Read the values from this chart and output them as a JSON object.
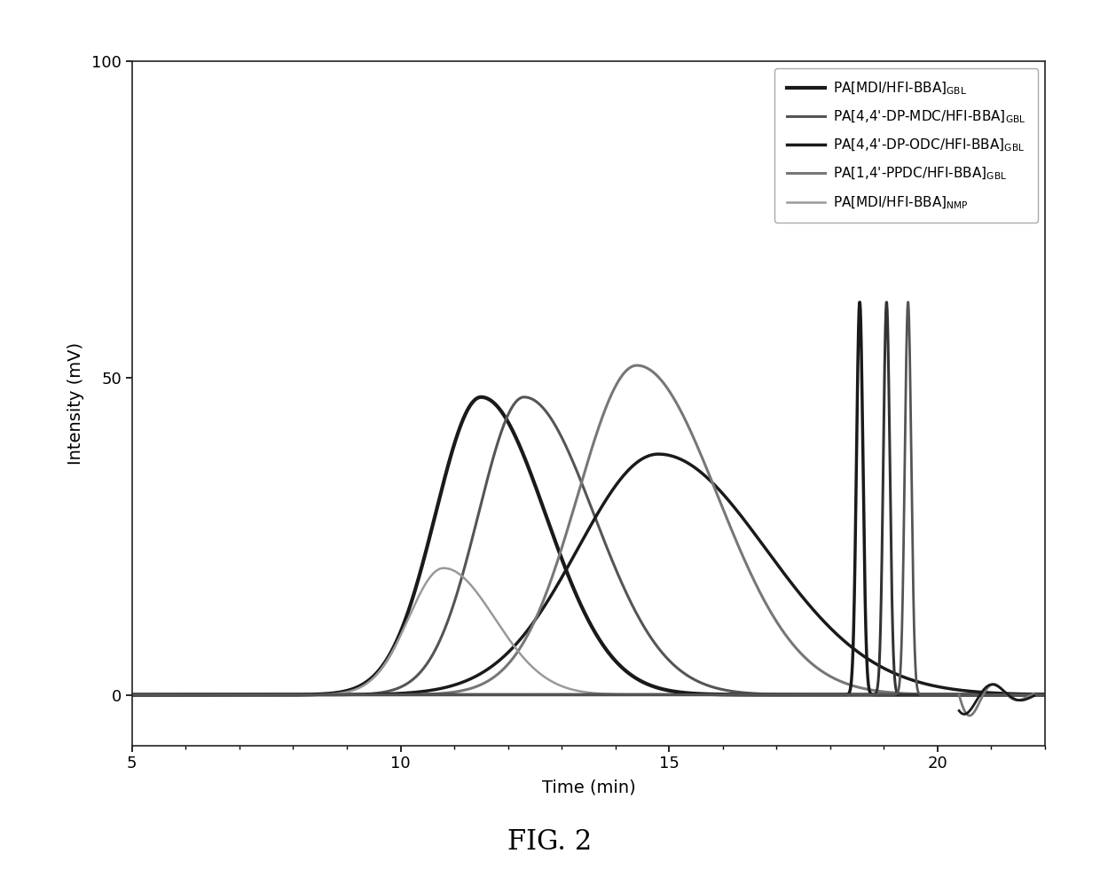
{
  "xlabel": "Time (min)",
  "ylabel": "Intensity (mV)",
  "xlim": [
    5,
    22
  ],
  "ylim": [
    -8,
    100
  ],
  "yticks": [
    0,
    50,
    100
  ],
  "xticks": [
    5,
    10,
    15,
    20
  ],
  "fig_caption": "FIG. 2",
  "background_color": "#ffffff",
  "plot_bg_color": "#ffffff",
  "legend_entries": [
    {
      "label_main": "PA[MDI/HFI-BBA]",
      "label_sub": "GBL",
      "color": "#1a1a1a",
      "lw": 3.0
    },
    {
      "label_main": "PA[4,4'-DP-MDC/HFI-BBA]",
      "label_sub": "GBL",
      "color": "#555555",
      "lw": 2.2
    },
    {
      "label_main": "PA[4,4'-DP-ODC/HFI-BBA]",
      "label_sub": "GBL",
      "color": "#1a1a1a",
      "lw": 2.5
    },
    {
      "label_main": "PA[1,4'-PPDC/HFI-BBA]",
      "label_sub": "GBL",
      "color": "#777777",
      "lw": 2.2
    },
    {
      "label_main": "PA[MDI/HFI-BBA]",
      "label_sub": "NMP",
      "color": "#999999",
      "lw": 1.8
    }
  ],
  "curves": [
    {
      "mu": 11.5,
      "amp": 47,
      "sl": 0.85,
      "sr": 1.2,
      "color": "#1a1a1a",
      "lw": 3.0
    },
    {
      "mu": 12.3,
      "amp": 47,
      "sl": 0.85,
      "sr": 1.3,
      "color": "#555555",
      "lw": 2.2
    },
    {
      "mu": 14.8,
      "amp": 38,
      "sl": 1.5,
      "sr": 2.0,
      "color": "#1a1a1a",
      "lw": 2.5
    },
    {
      "mu": 14.4,
      "amp": 52,
      "sl": 1.1,
      "sr": 1.5,
      "color": "#777777",
      "lw": 2.2
    },
    {
      "mu": 10.8,
      "amp": 20,
      "sl": 0.65,
      "sr": 0.95,
      "color": "#999999",
      "lw": 1.8
    }
  ],
  "sharp_peaks": [
    {
      "mu": 18.55,
      "amp": 62,
      "sigma": 0.06,
      "color": "#1a1a1a",
      "lw": 2.5
    },
    {
      "mu": 19.05,
      "amp": 62,
      "sigma": 0.06,
      "color": "#333333",
      "lw": 2.2
    },
    {
      "mu": 19.45,
      "amp": 62,
      "sigma": 0.06,
      "color": "#555555",
      "lw": 2.0
    }
  ]
}
